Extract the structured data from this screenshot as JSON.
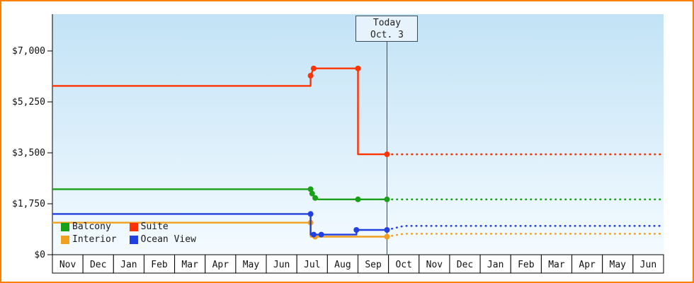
{
  "frame": {
    "border_color": "#ff7d00"
  },
  "chart_data": {
    "type": "line",
    "title": "",
    "ylim": [
      0,
      7000
    ],
    "y_axis": {
      "max": 7000,
      "ticks": [
        {
          "value": 7000,
          "label": "$7,000"
        },
        {
          "value": 5250,
          "label": "$5,250"
        },
        {
          "value": 3500,
          "label": "$3,500"
        },
        {
          "value": 1750,
          "label": "$1,750"
        },
        {
          "value": 0,
          "label": "$0"
        }
      ]
    },
    "x_axis": {
      "months": [
        "Nov",
        "Dec",
        "Jan",
        "Feb",
        "Mar",
        "Apr",
        "May",
        "Jun",
        "Jul",
        "Aug",
        "Sep",
        "Oct",
        "Nov",
        "Dec",
        "Jan",
        "Feb",
        "Mar",
        "Apr",
        "May",
        "Jun"
      ]
    },
    "today": {
      "label": "Today",
      "date": "Oct. 3",
      "x_index": 10.95
    },
    "series": [
      {
        "name": "Interior",
        "color": "#f0a01e",
        "solid": [
          [
            0,
            1100
          ],
          [
            8.45,
            1100
          ],
          [
            8.45,
            620
          ],
          [
            10.95,
            620
          ]
        ],
        "dots": [
          [
            8.45,
            1100
          ],
          [
            8.6,
            620
          ],
          [
            10.95,
            620
          ]
        ],
        "dotted": [
          [
            10.95,
            620
          ],
          [
            11.5,
            720
          ],
          [
            20,
            720
          ]
        ]
      },
      {
        "name": "Ocean View",
        "color": "#2240e0",
        "solid": [
          [
            0,
            1400
          ],
          [
            8.45,
            1400
          ],
          [
            8.45,
            690
          ],
          [
            9.95,
            690
          ],
          [
            9.95,
            850
          ],
          [
            10.95,
            850
          ]
        ],
        "dots": [
          [
            8.45,
            1400
          ],
          [
            8.55,
            690
          ],
          [
            8.8,
            690
          ],
          [
            9.95,
            850
          ],
          [
            10.95,
            850
          ]
        ],
        "dotted": [
          [
            10.95,
            850
          ],
          [
            11.5,
            990
          ],
          [
            20,
            990
          ]
        ]
      },
      {
        "name": "Balcony",
        "color": "#18a018",
        "solid": [
          [
            0,
            2250
          ],
          [
            8.45,
            2250
          ],
          [
            8.5,
            2100
          ],
          [
            8.6,
            1950
          ],
          [
            8.7,
            1900
          ],
          [
            10.0,
            1900
          ],
          [
            10.95,
            1900
          ]
        ],
        "dots": [
          [
            8.45,
            2250
          ],
          [
            8.5,
            2100
          ],
          [
            8.6,
            1950
          ],
          [
            10.0,
            1900
          ],
          [
            10.95,
            1900
          ]
        ],
        "dotted": [
          [
            10.95,
            1900
          ],
          [
            20,
            1900
          ]
        ]
      },
      {
        "name": "Suite",
        "color": "#ff3300",
        "solid": [
          [
            0,
            5800
          ],
          [
            8.45,
            5800
          ],
          [
            8.45,
            6150
          ],
          [
            8.55,
            6400
          ],
          [
            10.0,
            6400
          ],
          [
            10.0,
            3450
          ],
          [
            10.95,
            3450
          ]
        ],
        "dots": [
          [
            8.45,
            6150
          ],
          [
            8.55,
            6400
          ],
          [
            10.0,
            6400
          ],
          [
            10.95,
            3450
          ]
        ],
        "dotted": [
          [
            10.95,
            3450
          ],
          [
            20,
            3450
          ]
        ]
      }
    ],
    "legend": {
      "rows": [
        [
          "Balcony",
          "Suite"
        ],
        [
          "Interior",
          "Ocean View"
        ]
      ]
    }
  }
}
